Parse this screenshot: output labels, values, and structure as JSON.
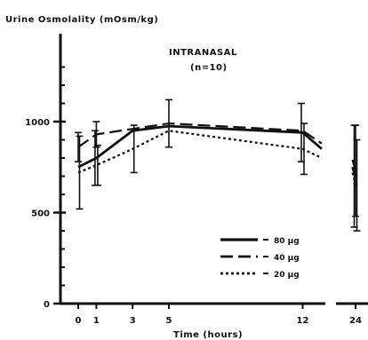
{
  "chart_data": {
    "type": "line",
    "title": "INTRANASAL",
    "subtitle": "(n=10)",
    "ylabel": "Urine Osmolality (mOsm/kg)",
    "xlabel": "Time (hours)",
    "ylim": [
      0,
      1400
    ],
    "yticks": [
      {
        "v": 0,
        "label": "0"
      },
      {
        "v": 500,
        "label": "500"
      },
      {
        "v": 1000,
        "label": "1000"
      }
    ],
    "xticks": [
      {
        "v": 0,
        "label": "0"
      },
      {
        "v": 1,
        "label": "1"
      },
      {
        "v": 3,
        "label": "3"
      },
      {
        "v": 5,
        "label": "5"
      },
      {
        "v": 12,
        "label": "12"
      },
      {
        "v": 24,
        "label": "24"
      }
    ],
    "legend_position": "bottom-right",
    "series": [
      {
        "name": "80 µg",
        "style": "solid",
        "x": [
          0,
          1,
          3,
          5,
          12,
          13,
          23,
          24
        ],
        "y": [
          750,
          800,
          950,
          975,
          940,
          850,
          750,
          700
        ],
        "err": [
          null,
          150,
          null,
          null,
          160,
          null,
          null,
          280
        ]
      },
      {
        "name": "40 µg",
        "style": "dashed",
        "x": [
          0,
          1,
          3,
          5,
          12,
          13,
          23,
          24
        ],
        "y": [
          860,
          930,
          960,
          990,
          950,
          880,
          790,
          730
        ],
        "err": [
          80,
          70,
          null,
          130,
          null,
          null,
          null,
          250
        ]
      },
      {
        "name": "20 µg",
        "style": "dotted",
        "x": [
          0,
          1,
          3,
          5,
          12,
          13,
          23,
          24
        ],
        "y": [
          720,
          760,
          850,
          950,
          850,
          800,
          720,
          650
        ],
        "err": [
          200,
          110,
          130,
          null,
          140,
          null,
          null,
          250
        ]
      }
    ]
  }
}
